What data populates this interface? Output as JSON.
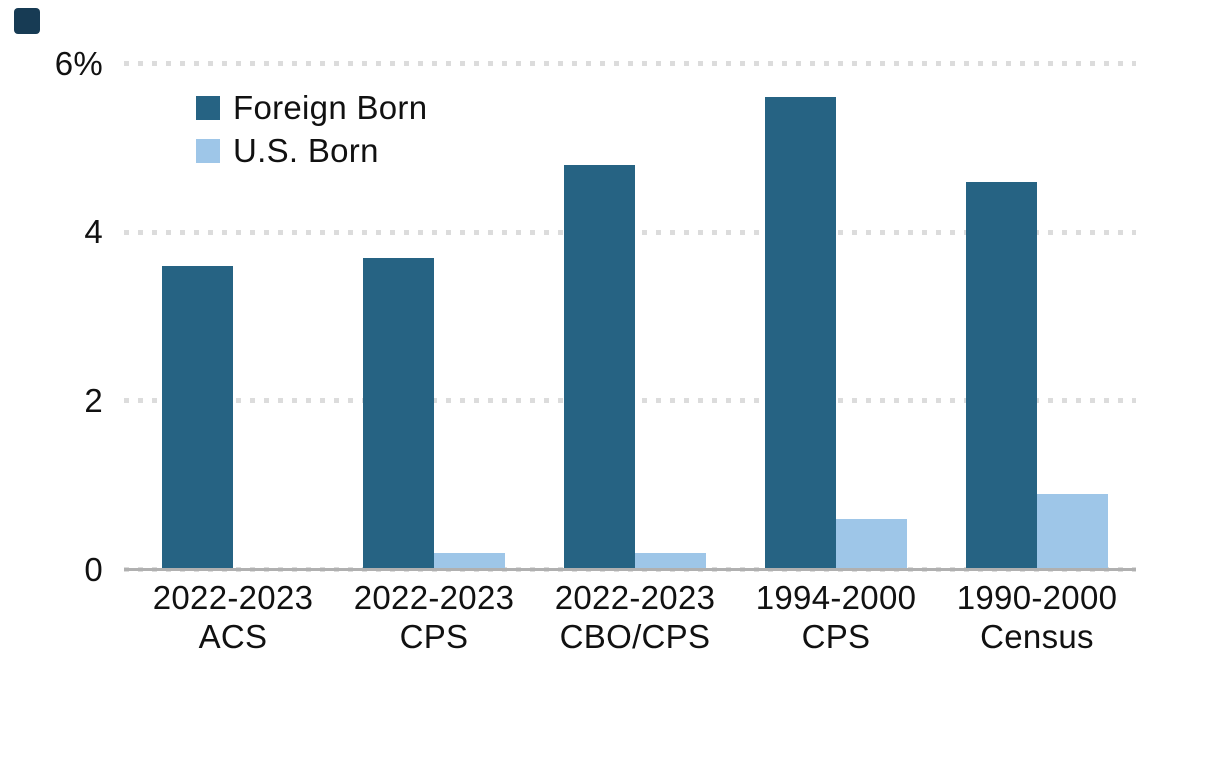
{
  "logo": {
    "color": "#173b54"
  },
  "chart_data": {
    "type": "bar",
    "title": "",
    "xlabel": "",
    "ylabel": "",
    "categories": [
      [
        "2022-2023",
        "ACS"
      ],
      [
        "2022-2023",
        "CPS"
      ],
      [
        "2022-2023",
        "CBO/CPS"
      ],
      [
        "1994-2000",
        "CPS"
      ],
      [
        "1990-2000",
        "Census"
      ]
    ],
    "series": [
      {
        "name": "Foreign Born",
        "color": "#266383",
        "values": [
          3.6,
          3.7,
          4.8,
          5.6,
          4.6
        ]
      },
      {
        "name": "U.S. Born",
        "color": "#9ec6e8",
        "values": [
          0,
          0.2,
          0.2,
          0.6,
          0.9
        ]
      }
    ],
    "ylim": [
      0,
      6
    ],
    "yticks": {
      "values": [
        0,
        2,
        4,
        6
      ],
      "labels": [
        "0",
        "2",
        "4",
        "6%"
      ]
    },
    "grid": "horizontal-dotted",
    "grid_color": "#dcdcdc",
    "axis_line_color": "#b0b0b0",
    "legend_position": "top-left-inside"
  }
}
